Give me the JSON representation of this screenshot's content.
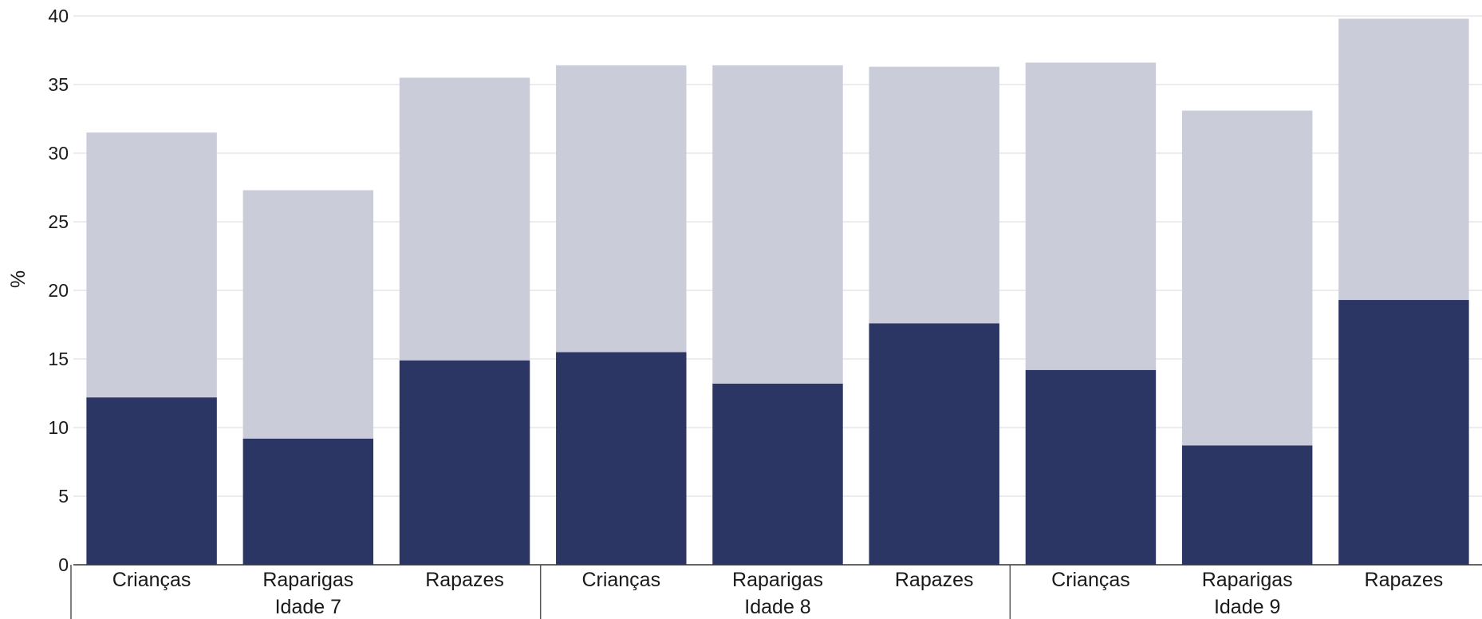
{
  "chart_data": {
    "type": "bar",
    "stacked": true,
    "ylabel": "%",
    "ylim": [
      0,
      40
    ],
    "yticks": [
      0,
      5,
      10,
      15,
      20,
      25,
      30,
      35,
      40
    ],
    "grid": true,
    "groups": [
      {
        "label": "Idade 7",
        "categories": [
          "Crianças",
          "Raparigas",
          "Rapazes"
        ]
      },
      {
        "label": "Idade 8",
        "categories": [
          "Crianças",
          "Raparigas",
          "Rapazes"
        ]
      },
      {
        "label": "Idade 9",
        "categories": [
          "Crianças",
          "Raparigas",
          "Rapazes"
        ]
      }
    ],
    "series": [
      {
        "color": "#2b3664",
        "values": [
          12.2,
          9.2,
          14.9,
          15.5,
          13.2,
          17.6,
          14.2,
          8.7,
          19.3
        ]
      },
      {
        "color": "#cbccd9",
        "values": [
          19.3,
          18.1,
          20.6,
          20.9,
          23.2,
          18.7,
          22.4,
          24.4,
          20.5
        ]
      }
    ]
  }
}
